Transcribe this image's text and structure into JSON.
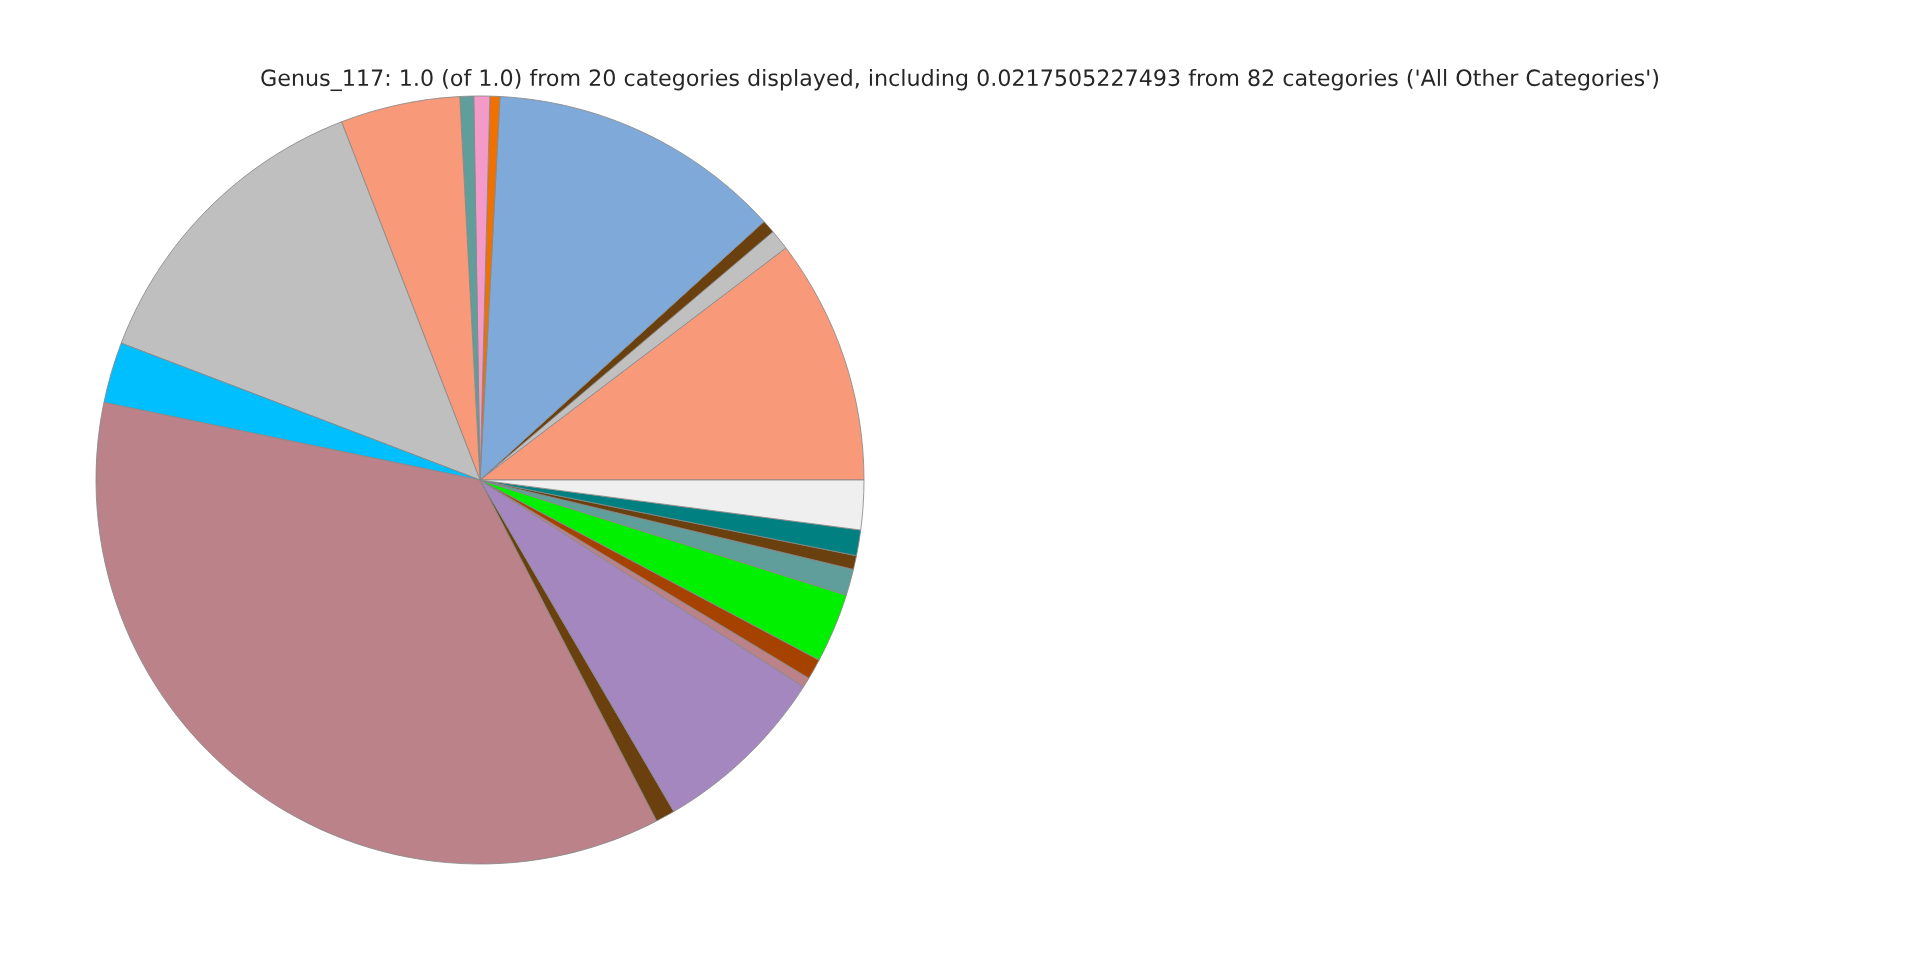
{
  "chart_data": {
    "type": "pie",
    "title": "Genus_117: 1.0 (of 1.0) from 20 categories displayed, including 0.0217505227493 from 82 categories ('All Other Categories')",
    "categories": [
      null,
      null,
      null,
      null,
      null,
      null,
      null,
      null,
      null,
      null,
      null,
      null,
      null,
      null,
      null,
      null,
      null,
      null,
      null,
      null
    ],
    "values": [
      10.33,
      0.86,
      0.56,
      12.42,
      0.42,
      0.67,
      0.58,
      5.03,
      13.33,
      2.56,
      35.85,
      0.81,
      7.53,
      0.42,
      0.86,
      2.92,
      1.11,
      0.58,
      1.08,
      2.08
    ],
    "colors": [
      "#f8997a",
      "#c0c0c0",
      "#6b400f",
      "#7ea9d9",
      "#f07000",
      "#f49ac8",
      "#5f9e9a",
      "#f8997a",
      "#bfbfbf",
      "#00bfff",
      "#bc828a",
      "#6b400f",
      "#a487bf",
      "#bc828a",
      "#a64200",
      "#00f000",
      "#5f9e9a",
      "#6b400f",
      "#008080",
      "#efefef"
    ]
  }
}
